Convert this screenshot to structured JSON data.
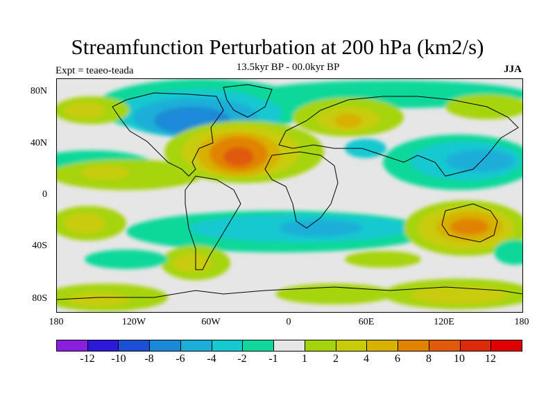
{
  "title": "Streamfunction Perturbation at 200 hPa (km2/s)",
  "subtitle": "13.5kyr BP - 00.0kyr BP",
  "experiment_label": "Expt = teaeo-teada",
  "season_label": "JJA",
  "lat_labels": [
    "80N",
    "40N",
    "0",
    "40S",
    "80S"
  ],
  "lon_labels": [
    "180",
    "120W",
    "60W",
    "0",
    "60E",
    "120E",
    "180"
  ],
  "colorbar": {
    "labels": [
      "-12",
      "-10",
      "-8",
      "-6",
      "-4",
      "-2",
      "-1",
      "1",
      "2",
      "4",
      "6",
      "8",
      "10",
      "12"
    ],
    "colors": [
      "#8b1fe0",
      "#2d19d8",
      "#1a4fd6",
      "#1a8ad6",
      "#1aaed8",
      "#16c8d0",
      "#10d89a",
      "#e6e6e6",
      "#a6d40c",
      "#c8cc08",
      "#d8b000",
      "#e08400",
      "#e05a0a",
      "#dc2a0a",
      "#e00000"
    ]
  },
  "colors": {
    "ocean_neutral": "#e6e6e6",
    "coast": "#000000"
  }
}
